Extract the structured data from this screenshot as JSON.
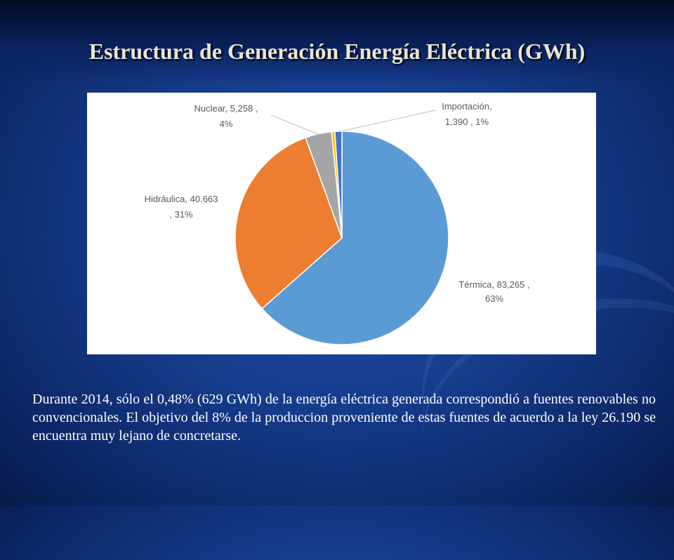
{
  "slide": {
    "title": "Estructura de Generación Energía Eléctrica (GWh)",
    "caption": "Durante 2014, sólo el 0,48% (629 GWh) de la energía eléctrica generada correspondió a fuentes renovables no convencionales. El objetivo del 8% de la produccion proveniente de estas fuentes de acuerdo a la ley 26.190 se encuentra muy lejano de concretarse."
  },
  "chart_data": {
    "type": "pie",
    "title": "",
    "slices": [
      {
        "name": "Térmica",
        "value": 83265,
        "value_label": "83,265",
        "percent_label": "63%",
        "label_line1": "Térmica,  83,265 ,",
        "label_line2": "63%",
        "color": "#5b9bd5"
      },
      {
        "name": "Hidráulica",
        "value": 40663,
        "value_label": "40,663",
        "percent_label": "31%",
        "label_line1": "Hidráulica,  40,663",
        "label_line2": ", 31%",
        "color": "#ed7d31"
      },
      {
        "name": "Nuclear",
        "value": 5258,
        "value_label": "5,258",
        "percent_label": "4%",
        "label_line1": "Nuclear,  5,258 ,",
        "label_line2": "4%",
        "color": "#a5a5a5"
      },
      {
        "name": "",
        "value": 629,
        "value_label": "",
        "percent_label": "",
        "label_line1": "",
        "label_line2": "",
        "color": "#ffc000"
      },
      {
        "name": "Importación",
        "value": 1390,
        "value_label": "1,390",
        "percent_label": "1%",
        "label_line1": "Importación,",
        "label_line2": "1,390 ,  1%",
        "color": "#4472c4"
      }
    ]
  }
}
